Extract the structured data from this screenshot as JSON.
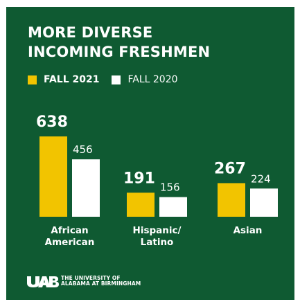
{
  "infographic": {
    "title_line1": "MORE DIVERSE",
    "title_line2": "INCOMING FRESHMEN",
    "background_color": "#0f5a32",
    "logo_text_line1": "THE UNIVERSITY OF",
    "logo_text_line2": "ALABAMA AT BIRMINGHAM",
    "logo_icon": "uab-logo-icon"
  },
  "chart_data": {
    "type": "bar",
    "title": "MORE DIVERSE INCOMING FRESHMEN",
    "categories": [
      [
        "African",
        "American"
      ],
      [
        "Hispanic/",
        "Latino"
      ],
      [
        "Asian"
      ]
    ],
    "series": [
      {
        "name": "FALL 2021",
        "color": "#f2c400",
        "values": [
          638,
          191,
          267
        ]
      },
      {
        "name": "FALL 2020",
        "color": "#ffffff",
        "values": [
          456,
          156,
          224
        ]
      }
    ],
    "legend_position": "top-left",
    "grid": false,
    "ylim": [
      0,
      638
    ]
  }
}
